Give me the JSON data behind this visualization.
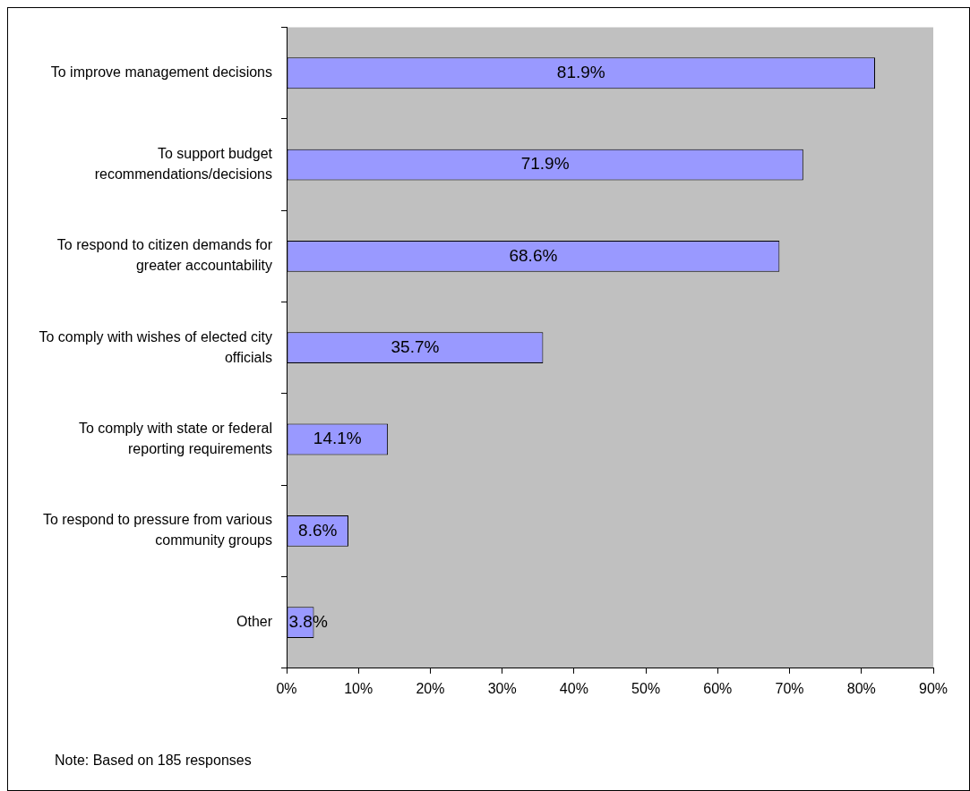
{
  "chart_data": {
    "type": "bar",
    "orientation": "horizontal",
    "categories": [
      "To improve management decisions",
      "To support budget recommendations/decisions",
      "To respond to citizen demands for greater accountability",
      "To comply with wishes of elected city officials",
      "To comply with state or federal reporting requirements",
      "To respond to pressure from various community groups",
      "Other"
    ],
    "values": [
      81.9,
      71.9,
      68.6,
      35.7,
      14.1,
      8.6,
      3.8
    ],
    "value_labels": [
      "81.9%",
      "71.9%",
      "68.6%",
      "35.7%",
      "14.1%",
      "8.6%",
      "3.8%"
    ],
    "color": "#9999ff",
    "xlim": [
      0,
      90
    ],
    "xticks": [
      {
        "value": 0,
        "label": "0%"
      },
      {
        "value": 10,
        "label": "10%"
      },
      {
        "value": 20,
        "label": "20%"
      },
      {
        "value": 30,
        "label": "30%"
      },
      {
        "value": 40,
        "label": "40%"
      },
      {
        "value": 50,
        "label": "50%"
      },
      {
        "value": 60,
        "label": "60%"
      },
      {
        "value": 70,
        "label": "70%"
      },
      {
        "value": 80,
        "label": "80%"
      },
      {
        "value": 90,
        "label": "90%"
      }
    ],
    "grid": false,
    "legend": false,
    "annotations": [
      "Note: Based on 185 responses"
    ]
  }
}
